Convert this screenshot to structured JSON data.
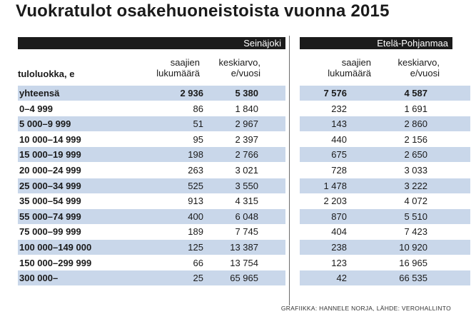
{
  "title": "Vuokratulot osakehuoneistoista vuonna 2015",
  "regions": [
    "Seinäjoki",
    "Etelä-Pohjanmaa"
  ],
  "column_headers": {
    "category": "tuloluokka, e",
    "count_line1": "saajien",
    "count_line2": "lukumäärä",
    "avg_line1": "keskiarvo,",
    "avg_line2": "e/vuosi"
  },
  "footer": "GRAFIIKKA: HANNELE NORJA, LÄHDE: VEROHALLINTO",
  "chart_data": {
    "type": "table",
    "title": "Vuokratulot osakehuoneistoista vuonna 2015",
    "columns": [
      "tuloluokka, e",
      "Seinäjoki saajien lukumäärä",
      "Seinäjoki keskiarvo, e/vuosi",
      "Etelä-Pohjanmaa saajien lukumäärä",
      "Etelä-Pohjanmaa keskiarvo, e/vuosi"
    ],
    "rows": [
      {
        "label": "yhteensä",
        "s_count": "2 936",
        "s_avg": "5 380",
        "ep_count": "7 576",
        "ep_avg": "4 587"
      },
      {
        "label": "0–4 999",
        "s_count": "86",
        "s_avg": "1 840",
        "ep_count": "232",
        "ep_avg": "1 691"
      },
      {
        "label": "5 000–9 999",
        "s_count": "51",
        "s_avg": "2 967",
        "ep_count": "143",
        "ep_avg": "2 860"
      },
      {
        "label": "10 000–14 999",
        "s_count": "95",
        "s_avg": "2 397",
        "ep_count": "440",
        "ep_avg": "2 156"
      },
      {
        "label": "15 000–19 999",
        "s_count": "198",
        "s_avg": "2 766",
        "ep_count": "675",
        "ep_avg": "2 650"
      },
      {
        "label": "20 000–24 999",
        "s_count": "263",
        "s_avg": "3 021",
        "ep_count": "728",
        "ep_avg": "3 033"
      },
      {
        "label": "25 000–34 999",
        "s_count": "525",
        "s_avg": "3 550",
        "ep_count": "1 478",
        "ep_avg": "3 222"
      },
      {
        "label": "35 000–54 999",
        "s_count": "913",
        "s_avg": "4 315",
        "ep_count": "2 203",
        "ep_avg": "4 072"
      },
      {
        "label": "55 000–74 999",
        "s_count": "400",
        "s_avg": "6 048",
        "ep_count": "870",
        "ep_avg": "5 510"
      },
      {
        "label": "75 000–99 999",
        "s_count": "189",
        "s_avg": "7 745",
        "ep_count": "404",
        "ep_avg": "7 423"
      },
      {
        "label": "100 000–149 000",
        "s_count": "125",
        "s_avg": "13 387",
        "ep_count": "238",
        "ep_avg": "10 920"
      },
      {
        "label": "150 000–299 999",
        "s_count": "66",
        "s_avg": "13 754",
        "ep_count": "123",
        "ep_avg": "16 965"
      },
      {
        "label": "300 000–",
        "s_count": "25",
        "s_avg": "65 965",
        "ep_count": "42",
        "ep_avg": "66 535"
      }
    ]
  }
}
